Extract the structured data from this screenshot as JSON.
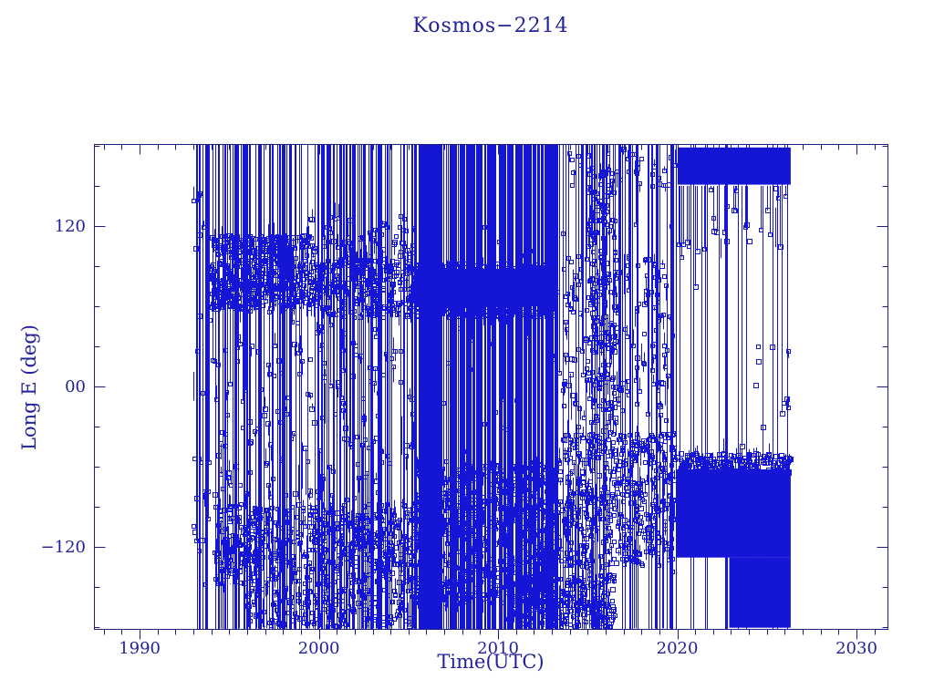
{
  "chart_data": {
    "type": "scatter",
    "title": "Kosmos−2214",
    "xlabel": "Time(UTC)",
    "ylabel": "Long E (deg)",
    "xlim": [
      1987.45,
      2031.73
    ],
    "ylim": [
      -181.4,
      181.4
    ],
    "x_ticks_major": [
      1990,
      2000,
      2010,
      2020,
      2030
    ],
    "x_tick_labels": [
      "1990",
      "2000",
      "2010",
      "2020",
      "2030"
    ],
    "x_minor_step_years": 1,
    "y_ticks_major": [
      120,
      0,
      -120
    ],
    "y_tick_labels": [
      "120",
      "00",
      "−120"
    ],
    "y_minor_step_deg": 30,
    "grid": false,
    "legend": "none",
    "marker": "open-square",
    "marker_size_px": 4,
    "series_color": "#1515d6",
    "axis_color": "#1c1c82",
    "text_color": "#22229b",
    "data_start_year": 1992.95,
    "data_end_year": 2026.4,
    "data_epochs": [
      {
        "period": "1993-1994",
        "behavior": "sparse full-circle drift; vertical wrap traces across all longitudes"
      },
      {
        "period": "1994-1999",
        "behavior": "dense cluster 58-113 deg E, drift wraps, lower band -88 to -148 deg E"
      },
      {
        "period": "1999-2005",
        "behavior": "cluster 52-95 deg E, band 95-128 deg E, lower band -88 to -150 deg E, frequent wraps"
      },
      {
        "period": "2005-2013",
        "behavior": "very dense coverage; solid band 60-88 deg E; heavy band -58 to -162 deg E; near-continuous wraps"
      },
      {
        "period": "2013-2020",
        "behavior": "looser scatter -135 to 100 deg E, episodic wraps, surge to 165 deg E near 2015-2016"
      },
      {
        "period": "2020-2026.4",
        "behavior": "compact solid block 151-179 deg E plus solid band -50 to -180 deg E with hanging excursions"
      },
      {
        "period": "after 2026.4",
        "behavior": "no data"
      }
    ],
    "render_spec": {
      "seed": 20214,
      "wrap_line_groups": [
        {
          "years": [
            1992.95,
            1994.2
          ],
          "count": 8
        },
        {
          "years": [
            1994.2,
            2005.3
          ],
          "count": 110
        },
        {
          "years": [
            2005.3,
            2013.35
          ],
          "count": 260
        },
        {
          "years": [
            2013.35,
            2019.85
          ],
          "count": 30
        },
        {
          "years": [
            2019.9,
            2026.35
          ],
          "count": 14
        }
      ],
      "partial_line_groups": [
        {
          "years": [
            1992.95,
            1994.2
          ],
          "from": 181,
          "to": [
            -150,
            100
          ],
          "count": 8
        },
        {
          "years": [
            1994.2,
            2005.3
          ],
          "from": 181,
          "to": [
            -60,
            120
          ],
          "count": 45
        },
        {
          "years": [
            2005.3,
            2013.35
          ],
          "from": 181,
          "to": [
            -60,
            120
          ],
          "count": 40
        },
        {
          "years": [
            2013.35,
            2019.85
          ],
          "from": 181,
          "to": [
            -40,
            150
          ],
          "count": 30
        },
        {
          "years": [
            1994.2,
            2013.35
          ],
          "from": -181,
          "to": [
            -150,
            -40
          ],
          "count": 45
        },
        {
          "years": [
            2013.35,
            2019.85
          ],
          "from": -181,
          "to": [
            -140,
            -60
          ],
          "count": 20
        }
      ],
      "clusters": [
        {
          "years": [
            1994.0,
            1999.6
          ],
          "deg": [
            58,
            113
          ],
          "count": 500,
          "stub": 0.55
        },
        {
          "years": [
            1999.6,
            2005.3
          ],
          "deg": [
            52,
            95
          ],
          "count": 260,
          "stub": 0.5
        },
        {
          "years": [
            2005.3,
            2013.35
          ],
          "deg": [
            52,
            92
          ],
          "count": 600,
          "stub": 0.5
        },
        {
          "years": [
            1994.2,
            2005.3
          ],
          "deg": [
            -148,
            -88
          ],
          "count": 520,
          "stub": 0.55
        },
        {
          "years": [
            2005.3,
            2013.35
          ],
          "deg": [
            -162,
            -58
          ],
          "count": 700,
          "stub": 0.5
        },
        {
          "years": [
            2013.35,
            2019.85
          ],
          "deg": [
            -135,
            -35
          ],
          "count": 450,
          "stub": 0.5
        },
        {
          "years": [
            2013.4,
            2019.6
          ],
          "deg": [
            -25,
            100
          ],
          "count": 150,
          "stub": 0.6
        },
        {
          "years": [
            2015.0,
            2016.6
          ],
          "deg": [
            -60,
            165
          ],
          "count": 170,
          "stub": 0.5
        },
        {
          "years": [
            2019.9,
            2026.35
          ],
          "deg": [
            -66,
            -50
          ],
          "count": 220,
          "stub": 0.4
        },
        {
          "years": [
            2010.5,
            2016.5
          ],
          "deg": [
            -180,
            -140
          ],
          "count": 280,
          "stub": 0.4
        },
        {
          "years": [
            1996.0,
            2005.3
          ],
          "deg": [
            -180,
            -150
          ],
          "count": 170,
          "stub": 0.4
        },
        {
          "years": [
            2020.0,
            2026.3
          ],
          "deg": [
            96,
            149
          ],
          "count": 26,
          "stub": 0.9,
          "stub_up": true
        },
        {
          "years": [
            2013.5,
            2019.9
          ],
          "deg": [
            150,
            179
          ],
          "count": 40,
          "stub": 0.5
        },
        {
          "years": [
            1994.2,
            2005.3
          ],
          "deg": [
            -85,
            50
          ],
          "count": 120,
          "stub": 0.6
        },
        {
          "years": [
            1999.5,
            2005.3
          ],
          "deg": [
            95,
            128
          ],
          "count": 55,
          "stub": 0.5
        },
        {
          "years": [
            1993.0,
            1994.2
          ],
          "deg": [
            -170,
            170
          ],
          "count": 22,
          "stub": 0.5
        },
        {
          "years": [
            2023.3,
            2026.2
          ],
          "deg": [
            -45,
            60
          ],
          "count": 8,
          "stub": 0.3
        }
      ],
      "solid_regions": [
        {
          "years": [
            2020.02,
            2026.33
          ],
          "deg": [
            151,
            178.8
          ]
        },
        {
          "years": [
            2019.95,
            2026.33
          ],
          "deg": [
            -128,
            -62
          ]
        },
        {
          "years": [
            2022.9,
            2026.33
          ],
          "deg": [
            -180.5,
            -128
          ]
        },
        {
          "years": [
            2005.45,
            2013.2
          ],
          "deg": [
            60,
            88
          ]
        }
      ],
      "droppers": [
        {
          "year": 2019.75,
          "from": 181,
          "to": -35,
          "square": true
        },
        {
          "year": 2020.15,
          "from": 150,
          "to": -57
        },
        {
          "year": 2020.55,
          "from": 150,
          "to": 108,
          "square": true
        },
        {
          "year": 2021.0,
          "from": 150,
          "to": 75,
          "square": true
        },
        {
          "year": 2021.35,
          "from": 150,
          "to": -57
        },
        {
          "year": 2022.3,
          "from": 181,
          "to": -57
        },
        {
          "year": 2023.6,
          "from": 150,
          "to": -45,
          "square": true
        },
        {
          "year": 2024.75,
          "from": 150,
          "to": -57
        },
        {
          "year": 2025.3,
          "from": 178,
          "to": 30,
          "square": true
        },
        {
          "year": 2025.85,
          "from": 178,
          "to": -20,
          "square": true
        }
      ]
    }
  }
}
